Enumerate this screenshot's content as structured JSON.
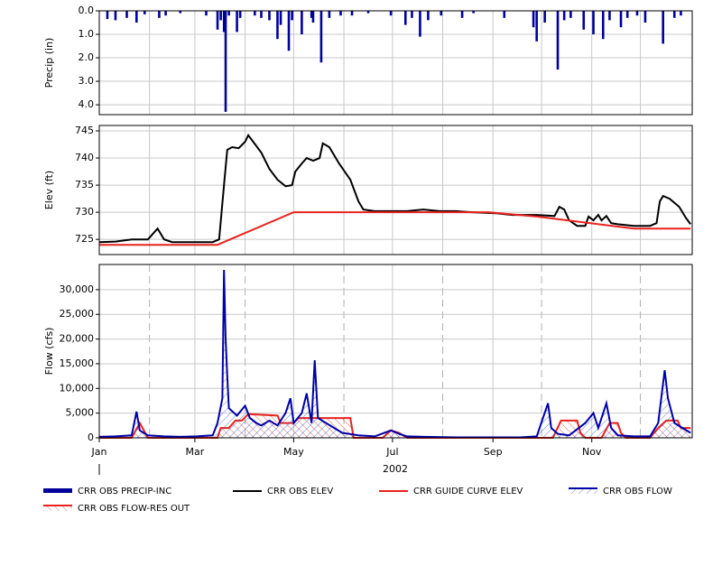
{
  "chart_data": [
    {
      "type": "bar",
      "ylabel": "Precip (in)",
      "xlim": [
        0,
        366
      ],
      "ylim": [
        0,
        4.42
      ],
      "inverted": true,
      "yticks": [
        {
          "value": 0,
          "label": "0.0"
        },
        {
          "value": 1,
          "label": "1.0"
        },
        {
          "value": 2,
          "label": "2.0"
        },
        {
          "value": 3,
          "label": "3.0"
        },
        {
          "value": 4,
          "label": "4.0"
        }
      ],
      "xgrid": [
        0,
        31,
        59,
        90,
        120,
        151,
        181,
        212,
        243,
        273,
        304,
        334
      ],
      "series": [
        {
          "name": "CRR OBS PRECIP-INC",
          "color": "#00009c",
          "x": [
            5,
            10,
            17,
            23,
            28,
            37,
            41,
            50,
            66,
            73,
            75,
            77,
            78,
            80,
            85,
            87,
            96,
            100,
            105,
            110,
            112,
            117,
            119,
            125,
            131,
            132,
            137,
            142,
            149,
            156,
            166,
            180,
            189,
            193,
            198,
            203,
            211,
            224,
            231,
            250,
            268,
            270,
            275,
            283,
            287,
            291,
            299,
            305,
            311,
            315,
            322,
            326,
            332,
            337,
            348,
            355,
            359
          ],
          "values": [
            0.35,
            0.4,
            0.3,
            0.5,
            0.15,
            0.3,
            0.2,
            0.1,
            0.2,
            0.8,
            0.4,
            0.9,
            4.3,
            0.2,
            0.9,
            0.3,
            0.2,
            0.3,
            0.4,
            1.2,
            0.6,
            1.7,
            0.4,
            1.0,
            0.3,
            0.5,
            2.2,
            0.3,
            0.2,
            0.2,
            0.1,
            0.2,
            0.6,
            0.3,
            1.1,
            0.4,
            0.2,
            0.3,
            0.1,
            0.3,
            0.7,
            1.3,
            0.5,
            2.5,
            0.4,
            0.3,
            0.8,
            1.0,
            1.2,
            0.4,
            0.7,
            0.3,
            0.2,
            0.5,
            1.4,
            0.3,
            0.2
          ]
        }
      ]
    },
    {
      "type": "line",
      "ylabel": "Elev (ft)",
      "xlim": [
        0,
        366
      ],
      "ylim": [
        722.2,
        746
      ],
      "yticks": [
        725,
        730,
        735,
        740,
        745
      ],
      "xgrid": [
        0,
        31,
        59,
        90,
        120,
        151,
        181,
        212,
        243,
        273,
        304,
        334
      ],
      "series": [
        {
          "name": "CRR OBS ELEV",
          "color": "#000000",
          "x": [
            0,
            10,
            20,
            30,
            36,
            40,
            45,
            60,
            70,
            74,
            77,
            79,
            82,
            86,
            90,
            92,
            95,
            100,
            105,
            110,
            115,
            119,
            121,
            125,
            128,
            132,
            136,
            138,
            142,
            148,
            155,
            160,
            163,
            170,
            180,
            190,
            200,
            210,
            220,
            230,
            245,
            255,
            270,
            281,
            284,
            287,
            290,
            295,
            300,
            302,
            305,
            308,
            310,
            313,
            316,
            320,
            330,
            340,
            344,
            346,
            348,
            352,
            358,
            362,
            365
          ],
          "values": [
            724.5,
            724.6,
            725,
            725,
            727,
            725,
            724.5,
            724.5,
            724.5,
            725,
            735,
            741.5,
            742,
            741.8,
            743,
            744.2,
            743,
            741,
            738,
            736,
            734.8,
            735,
            737.5,
            739,
            740,
            739.5,
            740,
            742.7,
            742,
            739,
            736,
            732,
            730.5,
            730.2,
            730.2,
            730.2,
            730.5,
            730.2,
            730.2,
            730,
            729.8,
            729.5,
            729.5,
            729.3,
            731,
            730.5,
            728.5,
            727.5,
            727.5,
            729.2,
            728.5,
            729.5,
            728.5,
            729.3,
            728,
            727.8,
            727.5,
            727.5,
            728,
            732,
            733,
            732.5,
            731,
            729,
            727.8
          ]
        },
        {
          "name": "CRR GUIDE CURVE ELEV",
          "color": "#e8221c",
          "x": [
            0,
            73,
            120,
            240,
            270,
            330,
            365
          ],
          "values": [
            724,
            724,
            730,
            730,
            729.2,
            727,
            727
          ]
        }
      ]
    },
    {
      "type": "area",
      "ylabel": "Flow (cfs)",
      "xlabel": "2002",
      "xlim": [
        0,
        366
      ],
      "ylim": [
        0,
        35100
      ],
      "yticks": [
        0,
        {
          "value": 5000,
          "label": "5,000"
        },
        {
          "value": 10000,
          "label": "10,000"
        },
        {
          "value": 15000,
          "label": "15,000"
        },
        {
          "value": 20000,
          "label": "20,000"
        },
        {
          "value": 25000,
          "label": "25,000"
        },
        {
          "value": 30000,
          "label": "30,000"
        }
      ],
      "xticks": [
        {
          "value": 0,
          "label": "Jan"
        },
        {
          "value": 59,
          "label": "Mar"
        },
        {
          "value": 120,
          "label": "May"
        },
        {
          "value": 181,
          "label": "Jul"
        },
        {
          "value": 243,
          "label": "Sep"
        },
        {
          "value": 304,
          "label": "Nov"
        }
      ],
      "xgrid_dashed": [
        31,
        90,
        151,
        212,
        273,
        334
      ],
      "series": [
        {
          "name": "CRR OBS FLOW",
          "color": "#0000a8",
          "x": [
            0,
            10,
            20,
            23,
            25,
            30,
            40,
            50,
            60,
            70,
            73,
            76,
            77,
            78,
            79,
            80,
            85,
            90,
            93,
            97,
            100,
            105,
            110,
            115,
            118,
            120,
            125,
            128,
            131,
            133,
            135,
            140,
            145,
            150,
            160,
            170,
            180,
            185,
            190,
            200,
            220,
            240,
            260,
            270,
            277,
            279,
            283,
            290,
            300,
            305,
            308,
            313,
            316,
            320,
            330,
            340,
            345,
            349,
            351,
            355,
            360,
            365
          ],
          "values": [
            200,
            300,
            500,
            5300,
            1500,
            500,
            300,
            200,
            300,
            500,
            3000,
            8000,
            34000,
            20000,
            12500,
            6000,
            4500,
            6500,
            4000,
            3000,
            2500,
            3500,
            2500,
            5000,
            8000,
            3000,
            5000,
            9000,
            3000,
            15700,
            4000,
            3000,
            2000,
            1000,
            500,
            300,
            1500,
            800,
            300,
            200,
            100,
            100,
            100,
            300,
            7000,
            2000,
            800,
            500,
            3000,
            5000,
            2000,
            7000,
            2000,
            500,
            300,
            300,
            3000,
            13700,
            8000,
            3000,
            2000,
            1000
          ]
        },
        {
          "name": "CRR OBS FLOW-RES OUT",
          "color": "#e8221c",
          "x": [
            0,
            20,
            25,
            30,
            60,
            73,
            75,
            80,
            84,
            88,
            92,
            110,
            112,
            120,
            123,
            135,
            155,
            157,
            175,
            180,
            185,
            190,
            280,
            285,
            295,
            297,
            300,
            310,
            315,
            320,
            322,
            325,
            340,
            345,
            350,
            357,
            359,
            365
          ],
          "values": [
            0,
            0,
            3000,
            0,
            0,
            0,
            2000,
            2000,
            3500,
            3500,
            4800,
            4500,
            3000,
            3000,
            4000,
            4000,
            4000,
            0,
            0,
            1500,
            1000,
            0,
            0,
            3500,
            3500,
            1000,
            0,
            0,
            3000,
            3000,
            1000,
            0,
            0,
            2000,
            3500,
            3500,
            2000,
            2000
          ]
        }
      ]
    }
  ]
}
